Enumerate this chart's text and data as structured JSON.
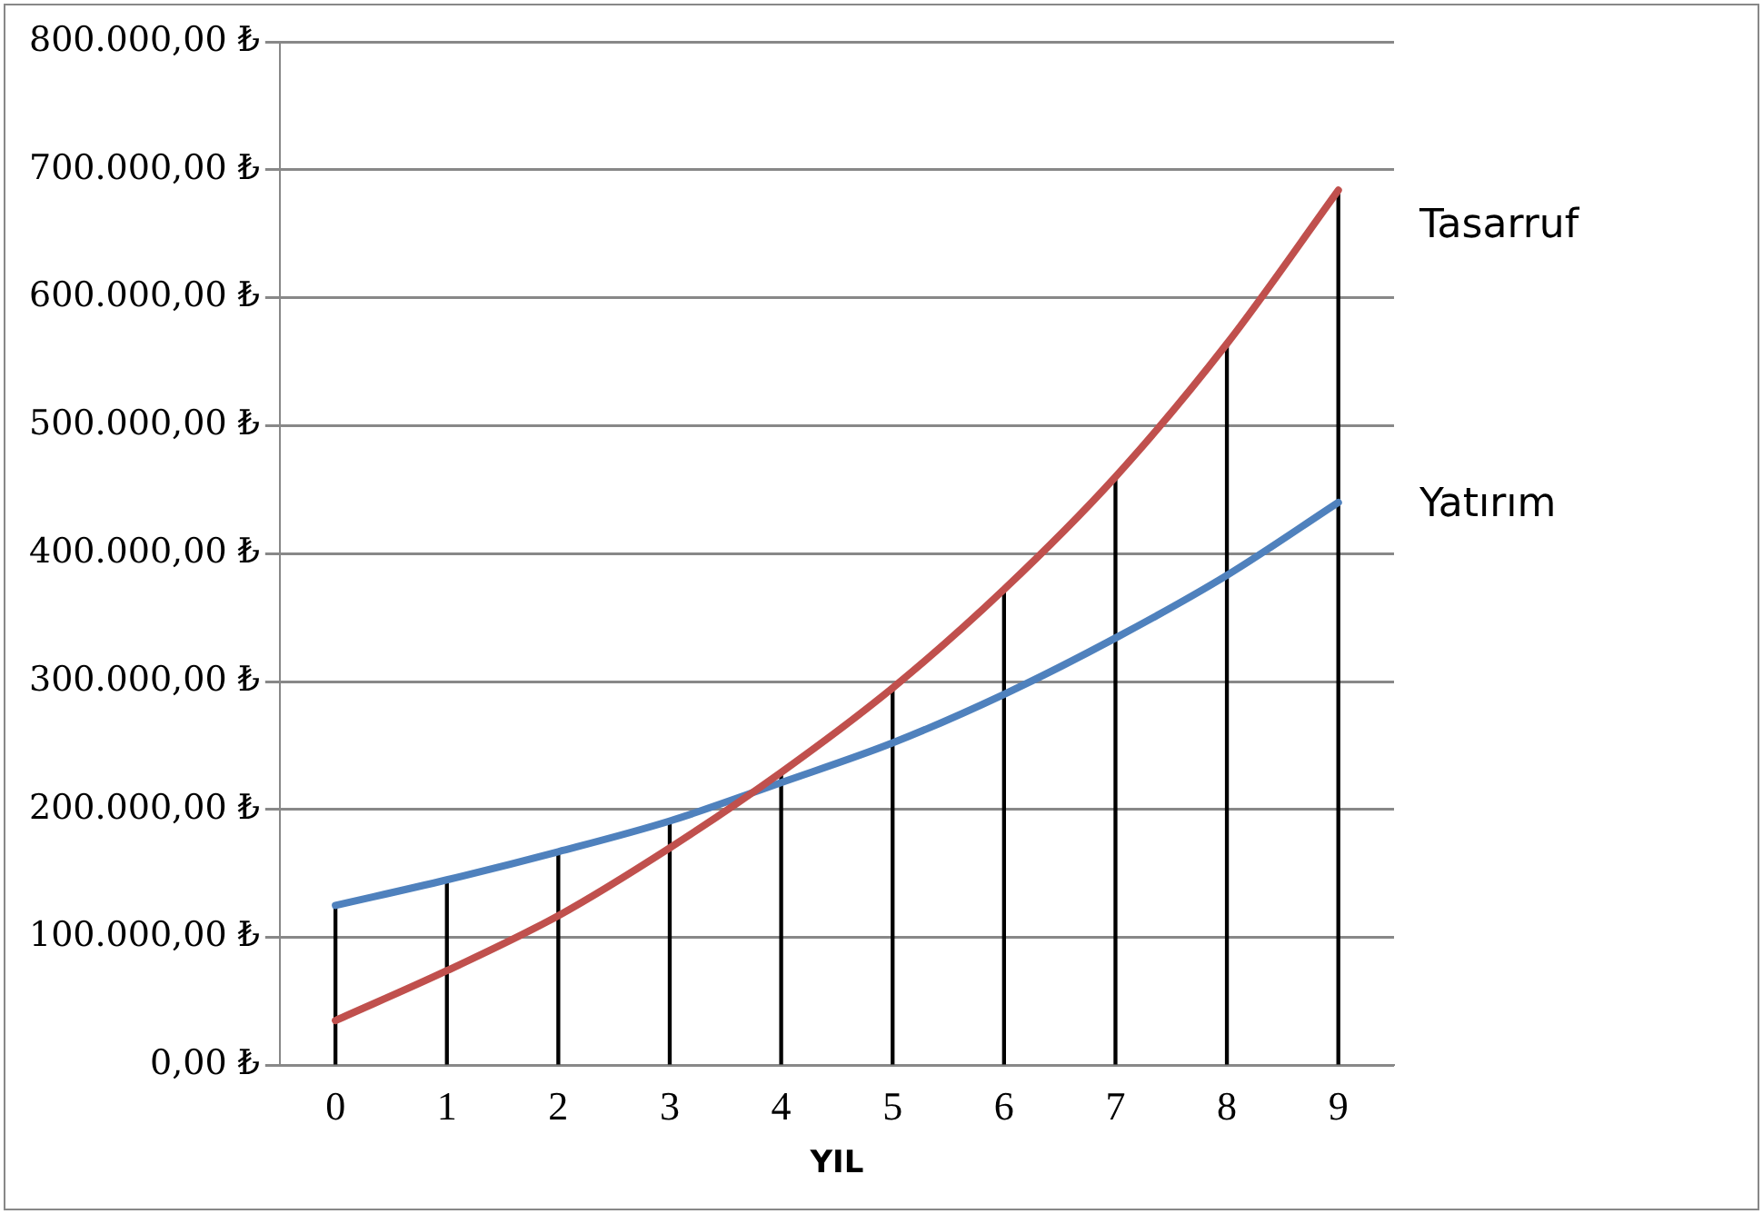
{
  "chart_data": {
    "type": "line",
    "xlabel": "YIL",
    "categories": [
      "0",
      "1",
      "2",
      "3",
      "4",
      "5",
      "6",
      "7",
      "8",
      "9"
    ],
    "series": [
      {
        "name": "Tasarruf",
        "color": "#c0504d",
        "values": [
          35000,
          74000,
          117000,
          170000,
          229000,
          295000,
          372000,
          460000,
          564000,
          684000
        ]
      },
      {
        "name": "Yatırım",
        "color": "#4f81bd",
        "values": [
          125000,
          145000,
          167000,
          191000,
          221000,
          252000,
          290000,
          334000,
          383000,
          440000
        ]
      },
      {
        "type": "bar",
        "color": "#000000",
        "values": [
          125000,
          145000,
          167000,
          191000,
          229000,
          295000,
          372000,
          460000,
          564000,
          684000
        ]
      }
    ],
    "ylim": [
      0,
      800000
    ],
    "yticks": [
      {
        "value": 0,
        "label": "0,00 ₺"
      },
      {
        "value": 100000,
        "label": "100.000,00 ₺"
      },
      {
        "value": 200000,
        "label": "200.000,00 ₺"
      },
      {
        "value": 300000,
        "label": "300.000,00 ₺"
      },
      {
        "value": 400000,
        "label": "400.000,00 ₺"
      },
      {
        "value": 500000,
        "label": "500.000,00 ₺"
      },
      {
        "value": 600000,
        "label": "600.000,00 ₺"
      },
      {
        "value": 700000,
        "label": "700.000,00 ₺"
      },
      {
        "value": 800000,
        "label": "800.000,00 ₺"
      }
    ],
    "grid": "y",
    "marker": "none",
    "line_style": "solid"
  }
}
